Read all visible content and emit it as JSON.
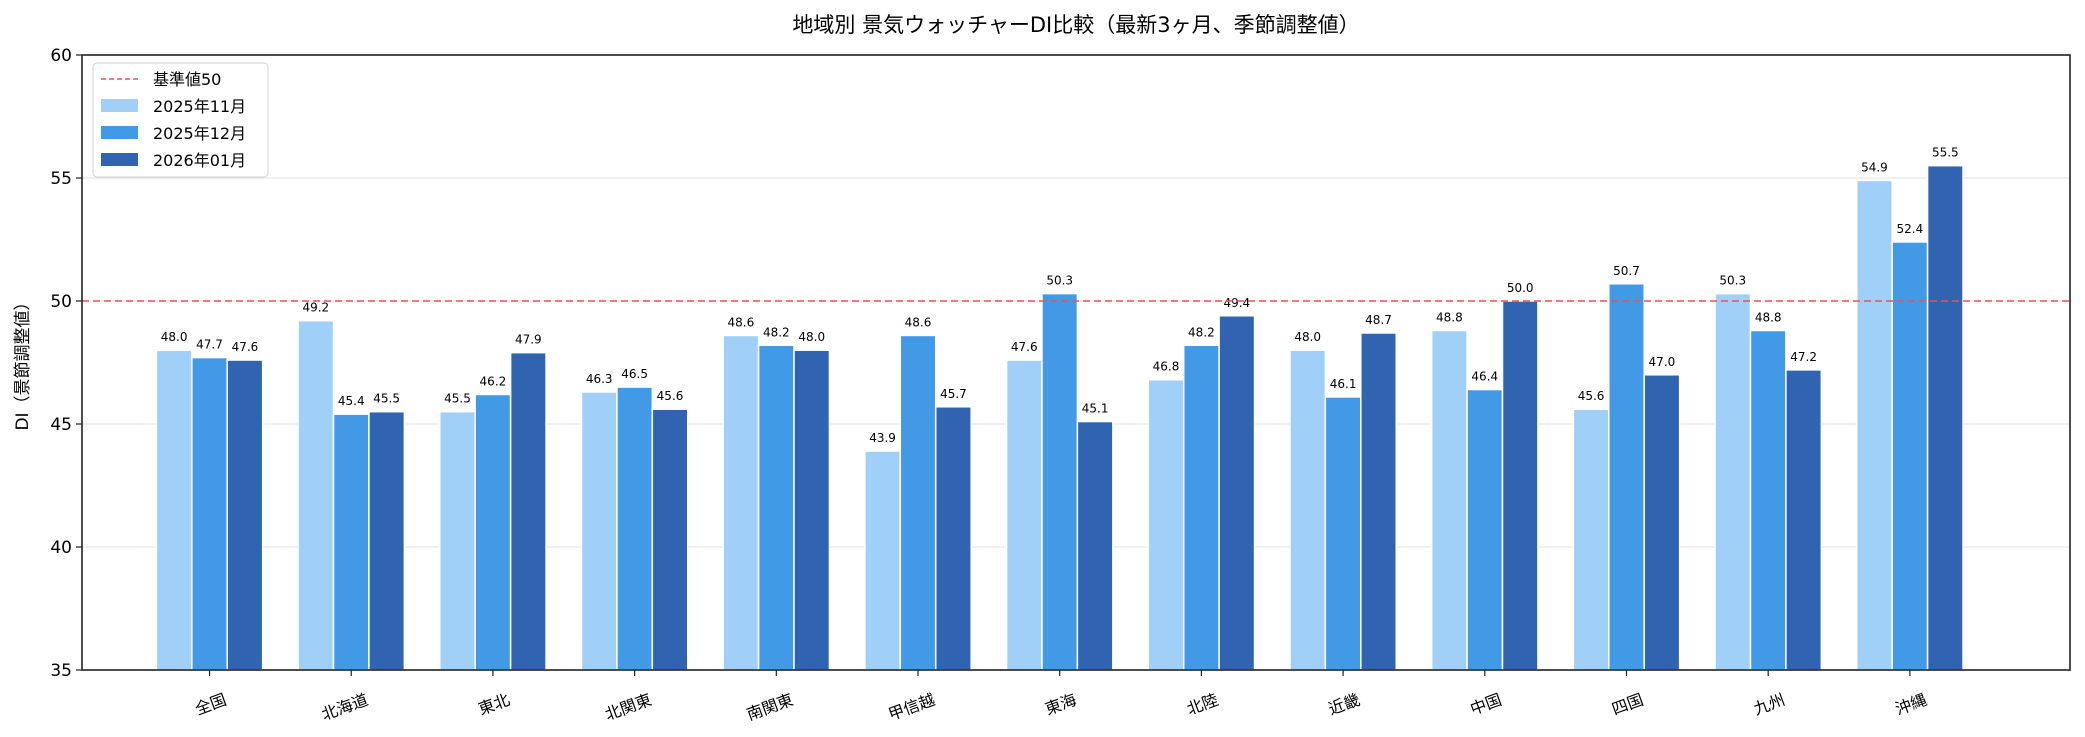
{
  "chart_data": {
    "type": "bar",
    "title": "地域別 景気ウォッチャーDI比較（最新3ヶ月、季節調整値）",
    "xlabel": "",
    "ylabel": "DI（景節調整値）",
    "ylim": [
      35,
      60
    ],
    "yticks": [
      35,
      40,
      45,
      50,
      55,
      60
    ],
    "grid": "y",
    "legend": "top-left",
    "categories": [
      "全国",
      "北海道",
      "東北",
      "北関東",
      "南関東",
      "甲信越",
      "東海",
      "北陸",
      "近畿",
      "中国",
      "四国",
      "九州",
      "沖縄"
    ],
    "series": [
      {
        "name": "2025年11月",
        "color": "#a0d0f8",
        "values": [
          48.0,
          49.2,
          45.5,
          46.3,
          48.6,
          43.9,
          47.6,
          46.8,
          48.0,
          48.8,
          45.6,
          50.3,
          54.9
        ]
      },
      {
        "name": "2025年12月",
        "color": "#4299e6",
        "values": [
          47.7,
          45.4,
          46.2,
          46.5,
          48.2,
          48.6,
          50.3,
          48.2,
          46.1,
          46.4,
          50.7,
          48.8,
          52.4
        ]
      },
      {
        "name": "2026年01月",
        "color": "#3063b0",
        "values": [
          47.6,
          45.5,
          47.9,
          45.6,
          48.0,
          45.7,
          45.1,
          49.4,
          48.7,
          50.0,
          47.0,
          47.2,
          55.5
        ]
      }
    ],
    "reference_line": {
      "name": "基準値50",
      "value": 50,
      "color": "#f05050",
      "style": "dashed"
    }
  }
}
